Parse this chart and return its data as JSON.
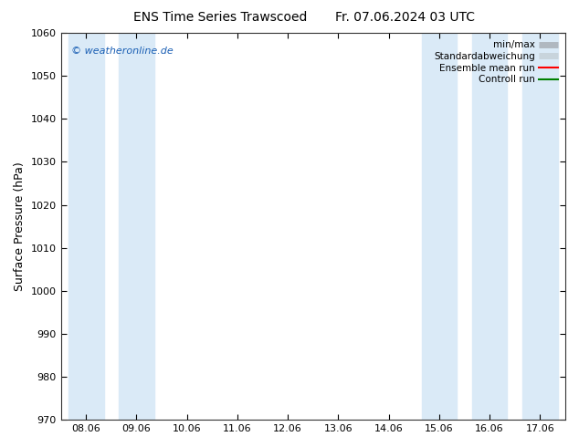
{
  "title_left": "ENS Time Series Trawscoed",
  "title_right": "Fr. 07.06.2024 03 UTC",
  "ylabel": "Surface Pressure (hPa)",
  "watermark": "© weatheronline.de",
  "ylim": [
    970,
    1060
  ],
  "yticks": [
    970,
    980,
    990,
    1000,
    1010,
    1020,
    1030,
    1040,
    1050,
    1060
  ],
  "x_labels": [
    "08.06",
    "09.06",
    "10.06",
    "11.06",
    "12.06",
    "13.06",
    "14.06",
    "15.06",
    "16.06",
    "17.06"
  ],
  "shaded_band_indices": [
    0,
    1,
    7,
    8,
    9
  ],
  "band_color": "#daeaf7",
  "bg_color": "#ffffff",
  "legend_entries": [
    "min/max",
    "Standardabweichung",
    "Ensemble mean run",
    "Controll run"
  ],
  "minmax_color": "#b0b8c0",
  "std_color": "#c8d4dc",
  "ensemble_color": "#ff0000",
  "control_color": "#008000",
  "title_fontsize": 10,
  "ylabel_fontsize": 9,
  "tick_fontsize": 8,
  "legend_fontsize": 7.5,
  "watermark_fontsize": 8,
  "watermark_color": "#1a5fb4"
}
